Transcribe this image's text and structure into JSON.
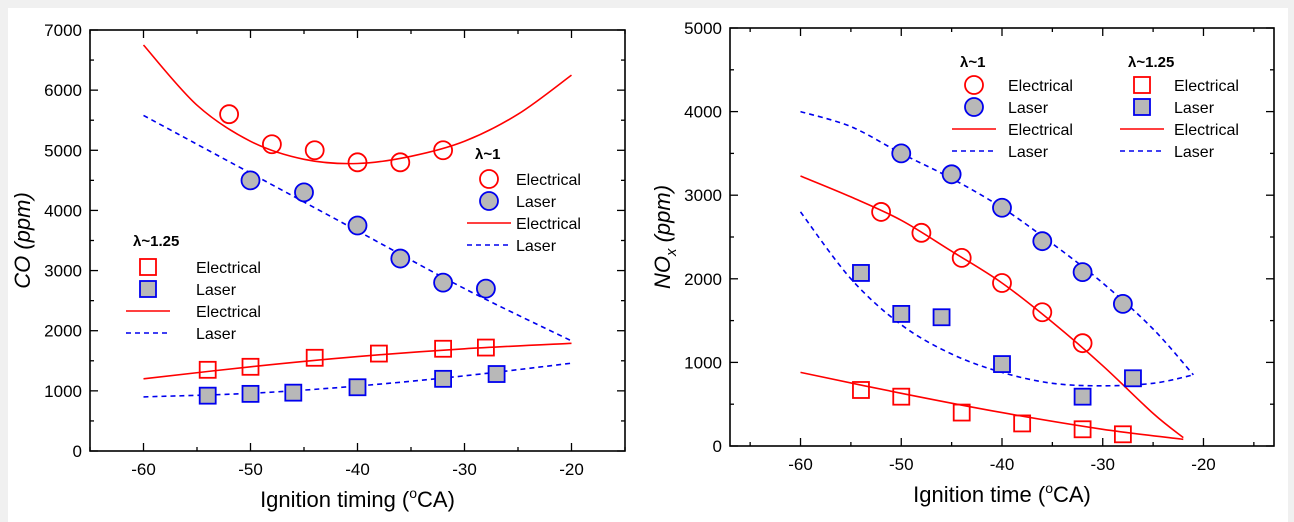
{
  "chart_data": [
    {
      "type": "scatter",
      "xlabel": "Ignition timing (",
      "xlabel_sup": "o",
      "xlabel_end": "CA)",
      "ylabel": "CO (ppm)",
      "xlim": [
        -65,
        -15
      ],
      "ylim": [
        0,
        7000
      ],
      "xticks": [
        -60,
        -50,
        -40,
        -30,
        -20
      ],
      "yticks": [
        0,
        1000,
        2000,
        3000,
        4000,
        5000,
        6000,
        7000
      ],
      "legend_groups": [
        {
          "label": "λ~1",
          "entries": [
            "Electrical",
            "Laser",
            "Electrical",
            "Laser"
          ]
        },
        {
          "label": "λ~1.25",
          "entries": [
            "Electrical",
            "Laser",
            "Electrical",
            "Laser"
          ]
        }
      ],
      "series": [
        {
          "name": "Electrical",
          "group": "λ~1",
          "marker": "open-circle",
          "x": [
            -52,
            -48,
            -44,
            -40,
            -36,
            -32
          ],
          "y": [
            5600,
            5100,
            5000,
            4800,
            4800,
            5000
          ]
        },
        {
          "name": "Laser",
          "group": "λ~1",
          "marker": "filled-circle",
          "x": [
            -50,
            -45,
            -40,
            -36,
            -32,
            -28
          ],
          "y": [
            4500,
            4300,
            3750,
            3200,
            2800,
            2700
          ]
        },
        {
          "name": "Electrical",
          "group": "λ~1",
          "style": "solid-fit",
          "x": [
            -60,
            -55,
            -50,
            -45,
            -40,
            -35,
            -30,
            -25,
            -20
          ],
          "y": [
            6750,
            5750,
            5150,
            4850,
            4780,
            4900,
            5150,
            5600,
            6250
          ]
        },
        {
          "name": "Laser",
          "group": "λ~1",
          "style": "dashed-fit",
          "x": [
            -60,
            -50,
            -40,
            -30,
            -20
          ],
          "y": [
            5580,
            4620,
            3660,
            2700,
            1830
          ]
        },
        {
          "name": "Electrical",
          "group": "λ~1.25",
          "marker": "open-square",
          "x": [
            -54,
            -50,
            -44,
            -38,
            -32,
            -28
          ],
          "y": [
            1350,
            1400,
            1550,
            1620,
            1700,
            1720
          ]
        },
        {
          "name": "Laser",
          "group": "λ~1.25",
          "marker": "filled-square",
          "x": [
            -54,
            -50,
            -46,
            -40,
            -32,
            -27
          ],
          "y": [
            920,
            950,
            970,
            1060,
            1200,
            1280
          ]
        },
        {
          "name": "Electrical",
          "group": "λ~1.25",
          "style": "solid-fit",
          "x": [
            -60,
            -50,
            -40,
            -30,
            -20
          ],
          "y": [
            1200,
            1400,
            1570,
            1700,
            1790
          ]
        },
        {
          "name": "Laser",
          "group": "λ~1.25",
          "style": "dashed-fit",
          "x": [
            -60,
            -50,
            -40,
            -30,
            -20
          ],
          "y": [
            900,
            960,
            1080,
            1250,
            1460
          ]
        }
      ]
    },
    {
      "type": "scatter",
      "xlabel": "Ignition time (",
      "xlabel_sup": "o",
      "xlabel_end": "CA)",
      "ylabel": "NO",
      "ylabel_sub": "x",
      "ylabel_end": " (ppm)",
      "xlim": [
        -67,
        -13
      ],
      "ylim": [
        0,
        5000
      ],
      "xticks": [
        -60,
        -50,
        -40,
        -30,
        -20
      ],
      "yticks": [
        0,
        1000,
        2000,
        3000,
        4000,
        5000
      ],
      "legend_groups": [
        {
          "label": "λ~1",
          "entries": [
            "Electrical",
            "Laser",
            "Electrical",
            "Laser"
          ]
        },
        {
          "label": "λ~1.25",
          "entries": [
            "Electrical",
            "Laser",
            "Electrical",
            "Laser"
          ]
        }
      ],
      "series": [
        {
          "name": "Electrical",
          "group": "λ~1",
          "marker": "open-circle",
          "x": [
            -52,
            -48,
            -44,
            -40,
            -36,
            -32
          ],
          "y": [
            2800,
            2550,
            2250,
            1950,
            1600,
            1230
          ]
        },
        {
          "name": "Laser",
          "group": "λ~1",
          "marker": "filled-circle",
          "x": [
            -50,
            -45,
            -40,
            -36,
            -32,
            -28
          ],
          "y": [
            3500,
            3250,
            2850,
            2450,
            2080,
            1700
          ]
        },
        {
          "name": "Electrical",
          "group": "λ~1",
          "style": "solid-fit",
          "x": [
            -60,
            -55,
            -50,
            -45,
            -40,
            -35,
            -30,
            -25,
            -22
          ],
          "y": [
            3230,
            2980,
            2700,
            2330,
            1950,
            1480,
            960,
            390,
            100
          ]
        },
        {
          "name": "Laser",
          "group": "λ~1",
          "style": "dashed-fit",
          "x": [
            -60,
            -55,
            -50,
            -45,
            -40,
            -35,
            -30,
            -25,
            -21
          ],
          "y": [
            4000,
            3820,
            3500,
            3200,
            2850,
            2420,
            1950,
            1400,
            850
          ]
        },
        {
          "name": "Electrical",
          "group": "λ~1.25",
          "marker": "open-square",
          "x": [
            -54,
            -50,
            -44,
            -38,
            -32,
            -28
          ],
          "y": [
            670,
            590,
            400,
            270,
            200,
            140
          ]
        },
        {
          "name": "Laser",
          "group": "λ~1.25",
          "marker": "filled-square",
          "x": [
            -54,
            -50,
            -46,
            -40,
            -32,
            -27
          ],
          "y": [
            2070,
            1580,
            1540,
            980,
            590,
            810
          ]
        },
        {
          "name": "Electrical",
          "group": "λ~1.25",
          "style": "solid-fit",
          "x": [
            -60,
            -50,
            -40,
            -30,
            -22
          ],
          "y": [
            880,
            630,
            400,
            200,
            80
          ]
        },
        {
          "name": "Laser",
          "group": "λ~1.25",
          "style": "dashed-fit",
          "x": [
            -60,
            -55,
            -50,
            -45,
            -40,
            -35,
            -30,
            -25,
            -21
          ],
          "y": [
            2800,
            2000,
            1450,
            1100,
            880,
            750,
            720,
            750,
            850
          ]
        }
      ]
    }
  ]
}
